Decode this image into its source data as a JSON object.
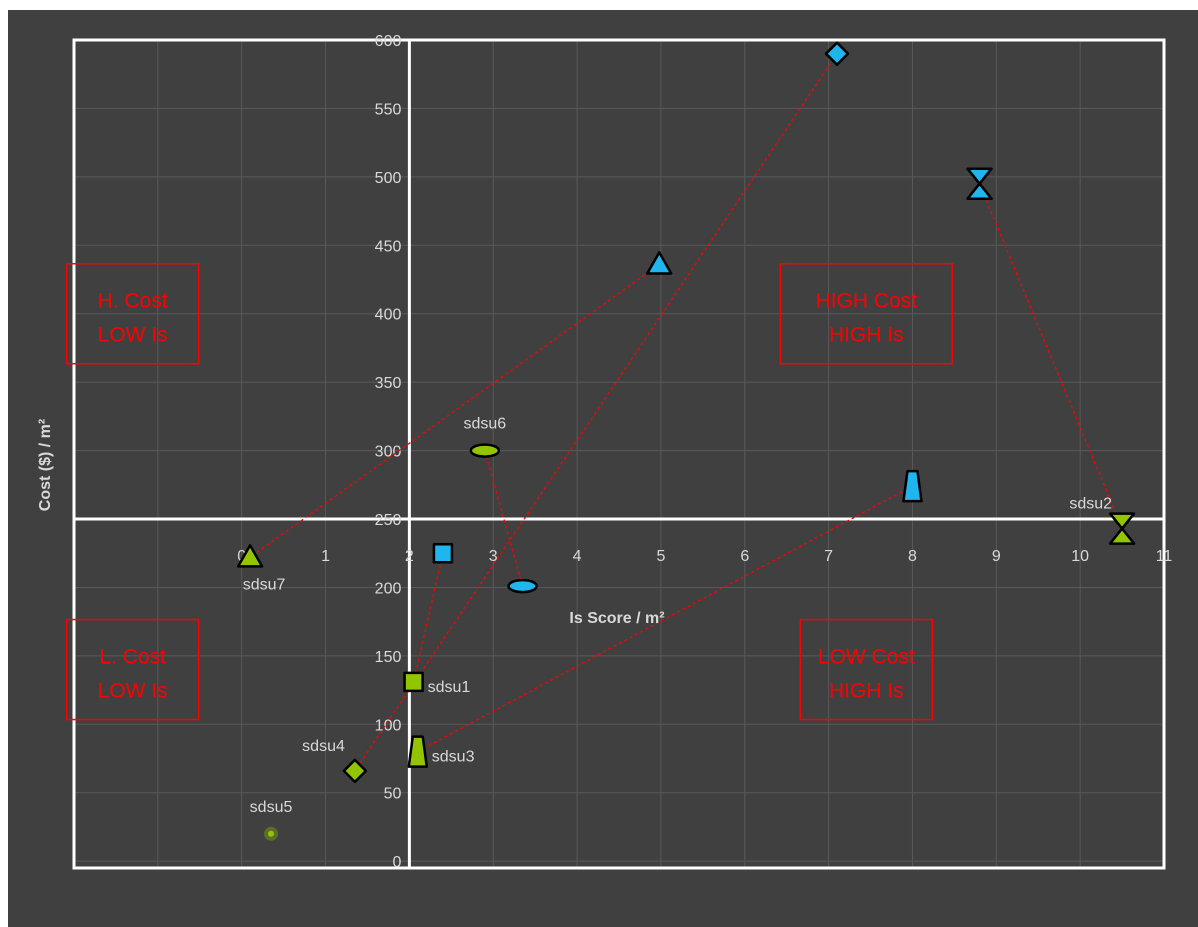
{
  "colors": {
    "background": "#404040",
    "axis": "#ffffff",
    "grid": "#595959",
    "text": "#d9d9d9",
    "connector": "#ff0000",
    "blue": "#1fb6ee",
    "green": "#92c400",
    "quadrant_text": "#ff0000"
  },
  "chart_data": {
    "type": "scatter",
    "title": "",
    "xlabel": "Is Score / m²",
    "ylabel": "Cost ($) / m²",
    "xlim": [
      -2,
      11
    ],
    "ylim": [
      -5,
      600
    ],
    "grid": true,
    "x_ticks": [
      0,
      1,
      2,
      3,
      4,
      5,
      6,
      7,
      8,
      9,
      10,
      11
    ],
    "y_ticks": [
      0,
      50,
      100,
      150,
      200,
      250,
      300,
      350,
      400,
      450,
      500,
      550,
      600
    ],
    "x_axis_crosses_at_y": 250,
    "y_axis_crosses_at_x": 2,
    "quadrant_labels": [
      {
        "line1": "H. Cost",
        "line2": "LOW Is",
        "x": -1.3,
        "y": 400
      },
      {
        "line1": "HIGH Cost",
        "line2": "HIGH Is",
        "x": 7.45,
        "y": 400
      },
      {
        "line1": "L. Cost",
        "line2": "LOW Is",
        "x": -1.3,
        "y": 140
      },
      {
        "line1": "LOW Cost",
        "line2": "HIGH Is",
        "x": 7.45,
        "y": 140
      }
    ],
    "pairs": [
      {
        "label": "sdsu1",
        "label_position": "right",
        "marker": "square",
        "blue": {
          "x": 2.4,
          "y": 225
        },
        "green": {
          "x": 2.05,
          "y": 131
        }
      },
      {
        "label": "sdsu2",
        "label_position": "left-top",
        "marker": "hourglass",
        "blue": {
          "x": 8.8,
          "y": 495
        },
        "green": {
          "x": 10.5,
          "y": 243
        }
      },
      {
        "label": "sdsu3",
        "label_position": "right",
        "marker": "trapezoid",
        "blue": {
          "x": 8.0,
          "y": 274
        },
        "green": {
          "x": 2.1,
          "y": 80
        }
      },
      {
        "label": "sdsu4",
        "label_position": "left-top",
        "marker": "diamond",
        "blue": {
          "x": 7.1,
          "y": 590
        },
        "green": {
          "x": 1.35,
          "y": 66
        }
      },
      {
        "label": "sdsu5",
        "label_position": "top",
        "marker": "dot",
        "green": {
          "x": 0.35,
          "y": 20
        }
      },
      {
        "label": "sdsu6",
        "label_position": "top",
        "marker": "ellipse",
        "blue": {
          "x": 3.35,
          "y": 201
        },
        "green": {
          "x": 2.9,
          "y": 300
        }
      },
      {
        "label": "sdsu7",
        "label_position": "bottom",
        "marker": "triangle",
        "blue": {
          "x": 4.98,
          "y": 436
        },
        "green": {
          "x": 0.1,
          "y": 222
        }
      }
    ]
  }
}
